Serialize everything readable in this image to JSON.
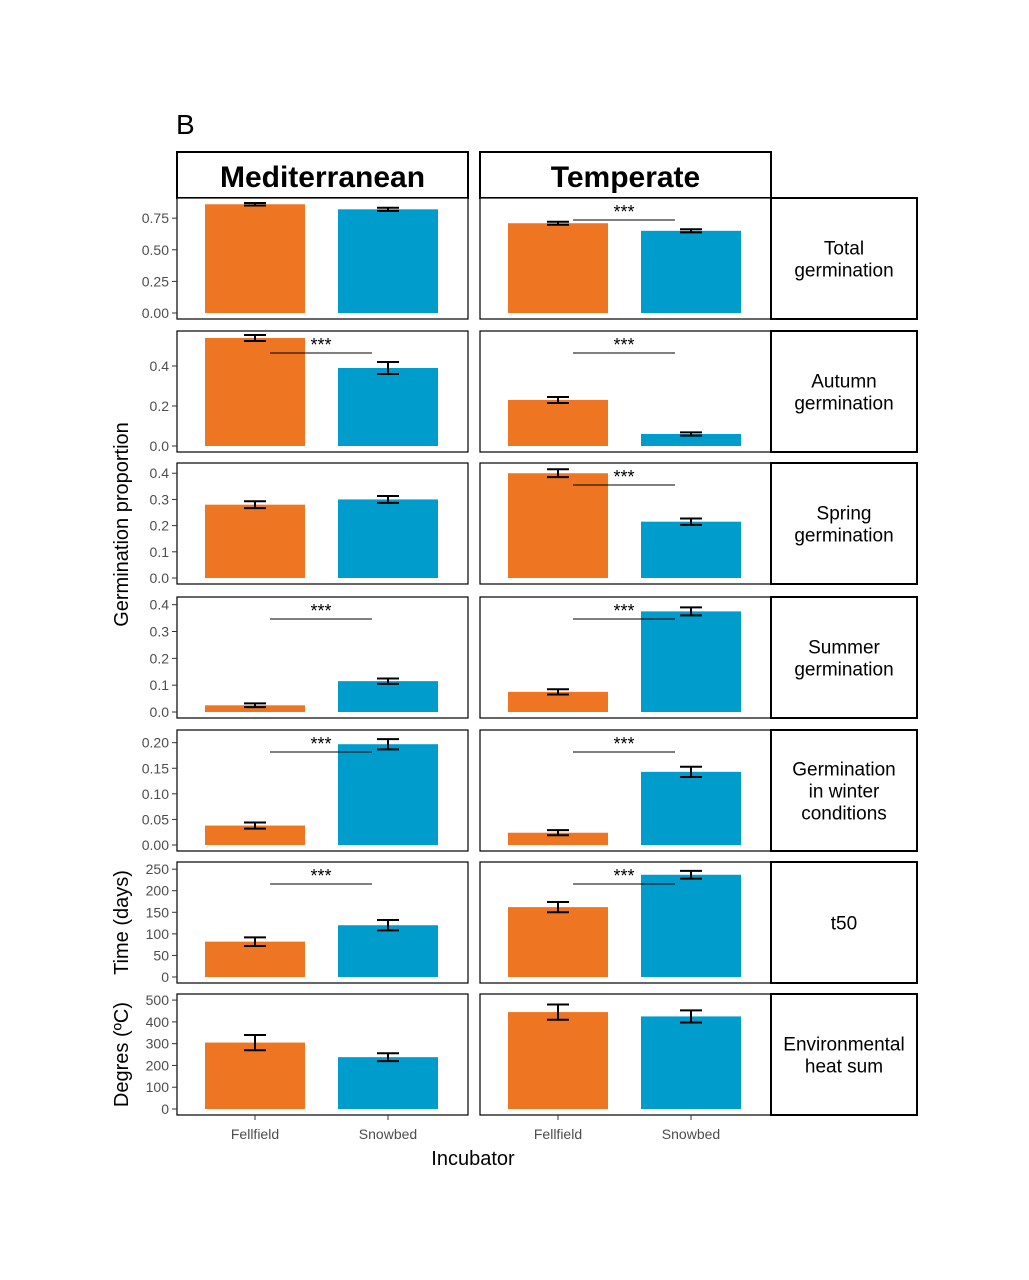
{
  "panel_letter": "B",
  "chart_data": {
    "type": "bar",
    "columns": [
      "Mediterranean",
      "Temperate"
    ],
    "categories": [
      "Fellfield",
      "Snowbed"
    ],
    "xlabel": "Incubator",
    "colors": {
      "Fellfield": "#ee7623",
      "Snowbed": "#009ccc"
    },
    "y_axis_labels": [
      {
        "text": "Germination proportion",
        "rows": [
          0,
          4
        ]
      },
      {
        "text": "Time (days)",
        "rows": [
          5,
          5
        ]
      },
      {
        "text": "Degres (ºC)",
        "rows": [
          6,
          6
        ]
      }
    ],
    "rows": [
      {
        "label_lines": [
          "Total",
          "germination"
        ],
        "ylim": [
          0,
          0.87
        ],
        "ticks": [
          "0.00",
          "0.25",
          "0.50",
          "0.75"
        ],
        "tick_values": [
          0,
          0.25,
          0.5,
          0.75
        ],
        "panels": [
          {
            "values": [
              0.86,
              0.82
            ],
            "errors": [
              0.01,
              0.012
            ],
            "sig": ""
          },
          {
            "values": [
              0.71,
              0.65
            ],
            "errors": [
              0.012,
              0.012
            ],
            "sig": "***"
          }
        ]
      },
      {
        "label_lines": [
          "Autumn",
          "germination"
        ],
        "ylim": [
          0,
          0.55
        ],
        "ticks": [
          "0.0",
          "0.2",
          "0.4"
        ],
        "tick_values": [
          0,
          0.2,
          0.4
        ],
        "panels": [
          {
            "values": [
              0.54,
              0.39
            ],
            "errors": [
              0.015,
              0.03
            ],
            "sig": "***"
          },
          {
            "values": [
              0.23,
              0.06
            ],
            "errors": [
              0.015,
              0.008
            ],
            "sig": "***"
          }
        ]
      },
      {
        "label_lines": [
          "Spring",
          "germination"
        ],
        "ylim": [
          0,
          0.42
        ],
        "ticks": [
          "0.0",
          "0.1",
          "0.2",
          "0.3",
          "0.4"
        ],
        "tick_values": [
          0,
          0.1,
          0.2,
          0.3,
          0.4
        ],
        "panels": [
          {
            "values": [
              0.28,
              0.3
            ],
            "errors": [
              0.013,
              0.013
            ],
            "sig": ""
          },
          {
            "values": [
              0.4,
              0.215
            ],
            "errors": [
              0.015,
              0.012
            ],
            "sig": "***"
          }
        ]
      },
      {
        "label_lines": [
          "Summer",
          "germination"
        ],
        "ylim": [
          0,
          0.41
        ],
        "ticks": [
          "0.0",
          "0.1",
          "0.2",
          "0.3",
          "0.4"
        ],
        "tick_values": [
          0,
          0.1,
          0.2,
          0.3,
          0.4
        ],
        "panels": [
          {
            "values": [
              0.025,
              0.115
            ],
            "errors": [
              0.007,
              0.01
            ],
            "sig": "***"
          },
          {
            "values": [
              0.075,
              0.375
            ],
            "errors": [
              0.01,
              0.015
            ],
            "sig": "***"
          }
        ]
      },
      {
        "label_lines": [
          "Germination",
          "in winter",
          "conditions"
        ],
        "ylim": [
          0,
          0.215
        ],
        "ticks": [
          "0.00",
          "0.05",
          "0.10",
          "0.15",
          "0.20"
        ],
        "tick_values": [
          0,
          0.05,
          0.1,
          0.15,
          0.2
        ],
        "panels": [
          {
            "values": [
              0.038,
              0.197
            ],
            "errors": [
              0.006,
              0.01
            ],
            "sig": "***"
          },
          {
            "values": [
              0.024,
              0.143
            ],
            "errors": [
              0.005,
              0.01
            ],
            "sig": "***"
          }
        ]
      },
      {
        "label_lines": [
          "t50"
        ],
        "ylim": [
          0,
          255
        ],
        "ticks": [
          "0",
          "50",
          "100",
          "150",
          "200",
          "250"
        ],
        "tick_values": [
          0,
          50,
          100,
          150,
          200,
          250
        ],
        "panels": [
          {
            "values": [
              82,
              120
            ],
            "errors": [
              10,
              12
            ],
            "sig": "***"
          },
          {
            "values": [
              162,
              237
            ],
            "errors": [
              12,
              9
            ],
            "sig": "***"
          }
        ]
      },
      {
        "label_lines": [
          "Environmental",
          "heat sum"
        ],
        "ylim": [
          0,
          505
        ],
        "ticks": [
          "0",
          "100",
          "200",
          "300",
          "400",
          "500"
        ],
        "tick_values": [
          0,
          100,
          200,
          300,
          400,
          500
        ],
        "panels": [
          {
            "values": [
              305,
              238
            ],
            "errors": [
              35,
              18
            ],
            "sig": ""
          },
          {
            "values": [
              445,
              425
            ],
            "errors": [
              35,
              28
            ],
            "sig": ""
          }
        ]
      }
    ]
  }
}
